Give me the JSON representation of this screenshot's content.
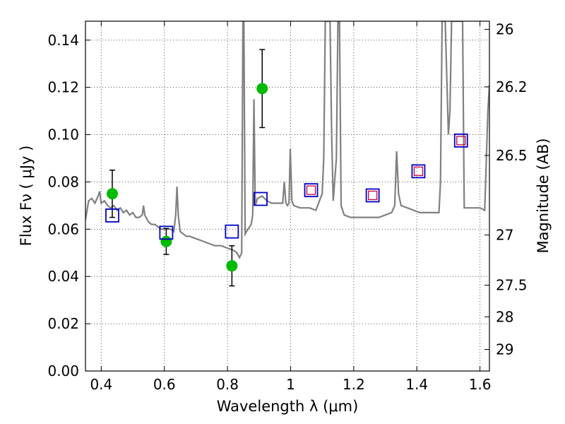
{
  "chart_data": {
    "type": "scatter",
    "xlabel": "Wavelength  λ (μm)",
    "ylabel": "Flux  Fν  ( μJy )",
    "y2label": "Magnitude (AB)",
    "xlim": [
      0.35,
      1.63
    ],
    "ylim": [
      0.0,
      0.148
    ],
    "grid": true,
    "x_ticks": [
      0.4,
      0.6,
      0.8,
      1.0,
      1.2,
      1.4,
      1.6
    ],
    "x_tick_labels": [
      "0.4",
      "0.6",
      "0.8",
      "1",
      "1.2",
      "1.4",
      "1.6"
    ],
    "y_ticks": [
      0.0,
      0.02,
      0.04,
      0.06,
      0.08,
      0.1,
      0.12,
      0.14
    ],
    "y_tick_labels": [
      "0.00",
      "0.02",
      "0.04",
      "0.06",
      "0.08",
      "0.10",
      "0.12",
      "0.14"
    ],
    "mag_ticks": [
      26,
      26.2,
      26.5,
      27,
      27.5,
      28,
      29
    ],
    "mag_tick_labels": [
      "26",
      "26.2",
      "26.5",
      "27",
      "27.5",
      "28",
      "29"
    ],
    "colors": {
      "model": "#808080",
      "observed": "#00bb00",
      "synthetic": "#0000cc",
      "inner": "#cc0033",
      "errorbar": "#000000"
    },
    "observed_points": [
      {
        "x": 0.435,
        "y": 0.075,
        "err": 0.01
      },
      {
        "x": 0.606,
        "y": 0.0548,
        "err": 0.0055
      },
      {
        "x": 0.814,
        "y": 0.0445,
        "err": 0.0085
      },
      {
        "x": 0.91,
        "y": 0.1195,
        "err": 0.0165
      }
    ],
    "synthetic_points": [
      {
        "x": 0.435,
        "y": 0.0658
      },
      {
        "x": 0.606,
        "y": 0.0585
      },
      {
        "x": 0.814,
        "y": 0.059
      },
      {
        "x": 0.905,
        "y": 0.0728
      },
      {
        "x": 1.065,
        "y": 0.0765
      },
      {
        "x": 1.26,
        "y": 0.0743
      },
      {
        "x": 1.405,
        "y": 0.0845
      },
      {
        "x": 1.54,
        "y": 0.0975
      }
    ],
    "inner_points": [
      {
        "x": 1.065,
        "y": 0.0765
      },
      {
        "x": 1.26,
        "y": 0.0743
      },
      {
        "x": 1.405,
        "y": 0.0845
      },
      {
        "x": 1.54,
        "y": 0.0975
      }
    ],
    "model_spectrum": [
      [
        0.35,
        0.064
      ],
      [
        0.36,
        0.072
      ],
      [
        0.37,
        0.073
      ],
      [
        0.38,
        0.071
      ],
      [
        0.39,
        0.074
      ],
      [
        0.395,
        0.076
      ],
      [
        0.4,
        0.071
      ],
      [
        0.41,
        0.072
      ],
      [
        0.42,
        0.07
      ],
      [
        0.43,
        0.069
      ],
      [
        0.44,
        0.07
      ],
      [
        0.45,
        0.068
      ],
      [
        0.46,
        0.069
      ],
      [
        0.47,
        0.067
      ],
      [
        0.48,
        0.068
      ],
      [
        0.49,
        0.066
      ],
      [
        0.5,
        0.067
      ],
      [
        0.51,
        0.065
      ],
      [
        0.52,
        0.065
      ],
      [
        0.53,
        0.066
      ],
      [
        0.534,
        0.07
      ],
      [
        0.538,
        0.066
      ],
      [
        0.55,
        0.063
      ],
      [
        0.56,
        0.062
      ],
      [
        0.57,
        0.062
      ],
      [
        0.58,
        0.061
      ],
      [
        0.59,
        0.06
      ],
      [
        0.6,
        0.06
      ],
      [
        0.61,
        0.06
      ],
      [
        0.62,
        0.06
      ],
      [
        0.63,
        0.059
      ],
      [
        0.636,
        0.066
      ],
      [
        0.64,
        0.078
      ],
      [
        0.644,
        0.066
      ],
      [
        0.65,
        0.059
      ],
      [
        0.66,
        0.058
      ],
      [
        0.67,
        0.057
      ],
      [
        0.68,
        0.057
      ],
      [
        0.7,
        0.056
      ],
      [
        0.72,
        0.055
      ],
      [
        0.74,
        0.054
      ],
      [
        0.76,
        0.053
      ],
      [
        0.78,
        0.053
      ],
      [
        0.8,
        0.052
      ],
      [
        0.82,
        0.051
      ],
      [
        0.83,
        0.05
      ],
      [
        0.838,
        0.048
      ],
      [
        0.845,
        0.05
      ],
      [
        0.849,
        0.148
      ],
      [
        0.852,
        0.148
      ],
      [
        0.856,
        0.058
      ],
      [
        0.865,
        0.06
      ],
      [
        0.875,
        0.062
      ],
      [
        0.88,
        0.066
      ],
      [
        0.884,
        0.115
      ],
      [
        0.888,
        0.07
      ],
      [
        0.895,
        0.073
      ],
      [
        0.91,
        0.074
      ],
      [
        0.925,
        0.072
      ],
      [
        0.94,
        0.071
      ],
      [
        0.96,
        0.071
      ],
      [
        0.975,
        0.071
      ],
      [
        0.98,
        0.08
      ],
      [
        0.985,
        0.071
      ],
      [
        0.99,
        0.07
      ],
      [
        0.995,
        0.071
      ],
      [
        0.999,
        0.094
      ],
      [
        1.004,
        0.072
      ],
      [
        1.01,
        0.07
      ],
      [
        1.03,
        0.069
      ],
      [
        1.06,
        0.069
      ],
      [
        1.08,
        0.068
      ],
      [
        1.1,
        0.075
      ],
      [
        1.105,
        0.09
      ],
      [
        1.11,
        0.148
      ],
      [
        1.125,
        0.148
      ],
      [
        1.13,
        0.1
      ],
      [
        1.135,
        0.072
      ],
      [
        1.145,
        0.09
      ],
      [
        1.15,
        0.148
      ],
      [
        1.155,
        0.148
      ],
      [
        1.16,
        0.07
      ],
      [
        1.17,
        0.066
      ],
      [
        1.19,
        0.065
      ],
      [
        1.22,
        0.065
      ],
      [
        1.25,
        0.065
      ],
      [
        1.28,
        0.065
      ],
      [
        1.3,
        0.066
      ],
      [
        1.32,
        0.067
      ],
      [
        1.33,
        0.07
      ],
      [
        1.336,
        0.093
      ],
      [
        1.342,
        0.075
      ],
      [
        1.35,
        0.07
      ],
      [
        1.37,
        0.069
      ],
      [
        1.39,
        0.068
      ],
      [
        1.41,
        0.067
      ],
      [
        1.43,
        0.067
      ],
      [
        1.45,
        0.067
      ],
      [
        1.47,
        0.067
      ],
      [
        1.475,
        0.08
      ],
      [
        1.48,
        0.148
      ],
      [
        1.49,
        0.148
      ],
      [
        1.5,
        0.1
      ],
      [
        1.505,
        0.11
      ],
      [
        1.51,
        0.148
      ],
      [
        1.52,
        0.148
      ],
      [
        1.53,
        0.148
      ],
      [
        1.54,
        0.148
      ],
      [
        1.545,
        0.148
      ],
      [
        1.55,
        0.069
      ],
      [
        1.56,
        0.069
      ],
      [
        1.58,
        0.069
      ],
      [
        1.6,
        0.069
      ],
      [
        1.615,
        0.068
      ],
      [
        1.625,
        0.11
      ],
      [
        1.63,
        0.121
      ]
    ]
  }
}
